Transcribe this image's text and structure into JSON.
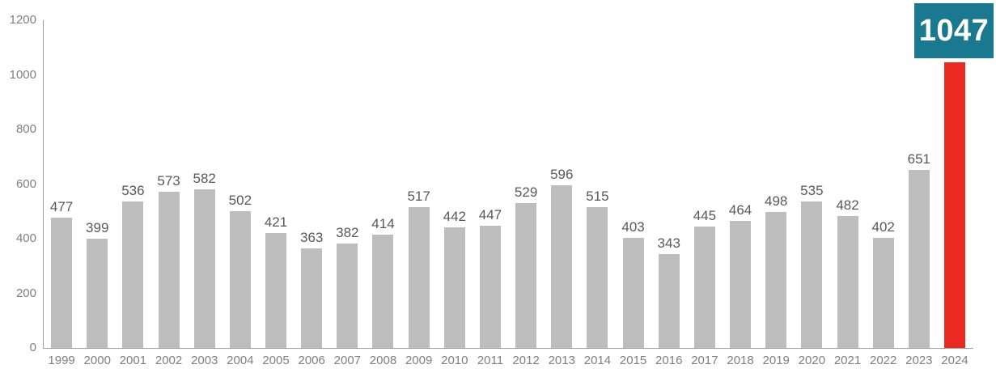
{
  "chart_data": {
    "type": "bar",
    "title": "",
    "xlabel": "",
    "ylabel": "",
    "categories": [
      "1999",
      "2000",
      "2001",
      "2002",
      "2003",
      "2004",
      "2005",
      "2006",
      "2007",
      "2008",
      "2009",
      "2010",
      "2011",
      "2012",
      "2013",
      "2014",
      "2015",
      "2016",
      "2017",
      "2018",
      "2019",
      "2020",
      "2021",
      "2022",
      "2023",
      "2024"
    ],
    "values": [
      477,
      399,
      536,
      573,
      582,
      502,
      421,
      363,
      382,
      414,
      517,
      442,
      447,
      529,
      596,
      515,
      403,
      343,
      445,
      464,
      498,
      535,
      482,
      402,
      651,
      1047
    ],
    "ylim": [
      0,
      1200
    ],
    "yticks": [
      0,
      200,
      400,
      600,
      800,
      1000,
      1200
    ],
    "grid": false,
    "legend": "none",
    "data_labels": true,
    "highlight_index": 25,
    "highlight_category": "2024",
    "highlight_value_label": "1047",
    "colors": {
      "bar": "#bdbdbd",
      "highlight_bar": "#ea2a20",
      "highlight_box_bg": "#1a788f",
      "highlight_box_text": "#ffffff",
      "data_label": "#595959",
      "axis_label": "#7f7f7f",
      "axis_line": "#9e9e9e"
    }
  }
}
